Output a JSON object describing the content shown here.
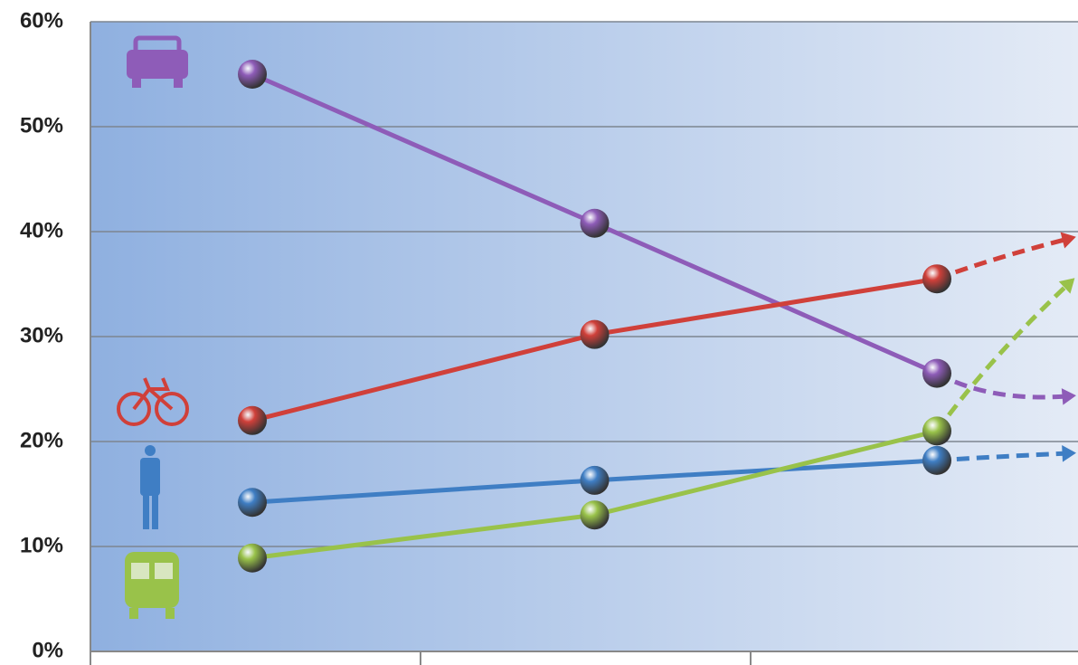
{
  "chart_data": {
    "type": "line",
    "categories": [
      null,
      null,
      null
    ],
    "series": [
      {
        "color": "#8e5cb8",
        "values": [
          55,
          40.8,
          26.5
        ]
      },
      {
        "color": "#d0403a",
        "values": [
          22,
          30.2,
          35.5
        ]
      },
      {
        "color": "#3f7ec4",
        "values": [
          14.2,
          16.3,
          18.2
        ]
      },
      {
        "color": "#99c24a",
        "values": [
          8.9,
          13,
          21
        ]
      }
    ],
    "ylim": [
      0,
      60
    ],
    "yticks": [
      {
        "value": 0,
        "label": "0%"
      },
      {
        "value": 10,
        "label": "10%"
      },
      {
        "value": 20,
        "label": "20%"
      },
      {
        "value": 30,
        "label": "30%"
      },
      {
        "value": 40,
        "label": "40%"
      },
      {
        "value": 50,
        "label": "50%"
      },
      {
        "value": 60,
        "label": "60%"
      }
    ],
    "grid": true
  }
}
